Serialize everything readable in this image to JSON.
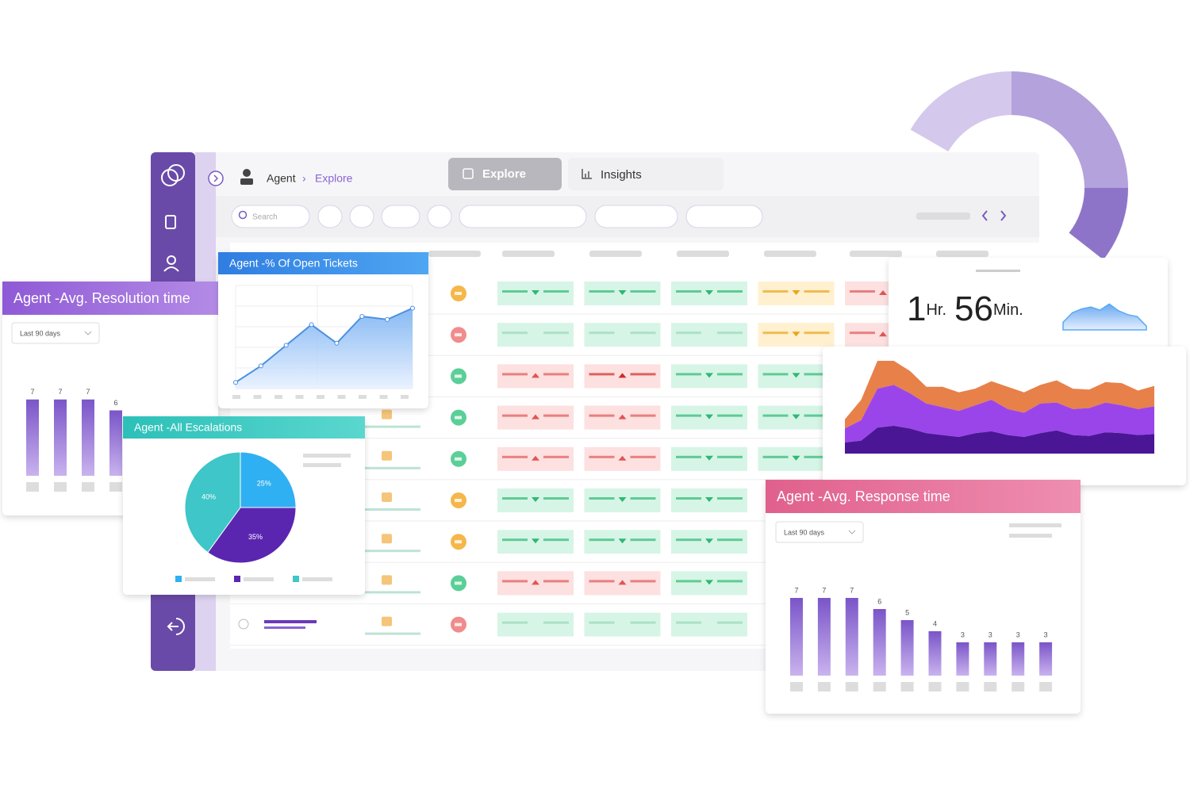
{
  "app": {
    "breadcrumb": [
      "Agent",
      "Explore"
    ],
    "tabs": [
      "Explore",
      "Insights"
    ],
    "search": "Search"
  },
  "chart_data": [
    {
      "type": "line",
      "title": "Agent -% Of Open Tickets",
      "values": [
        6,
        22,
        42,
        62,
        44,
        70,
        67,
        78
      ],
      "ylim": [
        0,
        100
      ],
      "color": "#4a90e2",
      "grid": true
    },
    {
      "type": "bar",
      "title": "Agent -Avg. Resolution time",
      "filter": "Last 90 days",
      "values": [
        7,
        7,
        7,
        6
      ],
      "ylim": [
        0,
        8
      ],
      "color": "#9b73d6"
    },
    {
      "type": "pie",
      "title": "Agent -All Escalations",
      "values": [
        25,
        35,
        40
      ],
      "value_labels": [
        "25%",
        "35%",
        "40%"
      ],
      "colors": [
        "#2fb0f2",
        "#5a26b0",
        "#3ec6c8"
      ]
    },
    {
      "type": "area",
      "headline": {
        "hours": 1,
        "hours_unit": "Hr.",
        "minutes": 56,
        "minutes_unit": "Min."
      },
      "values": [
        20,
        45,
        55,
        60,
        52,
        68,
        50,
        40,
        35,
        10
      ],
      "ylim": [
        0,
        100
      ],
      "color": "#5aa9f0"
    },
    {
      "type": "stacked-area",
      "ylim": [
        0,
        100
      ],
      "series": [
        {
          "color": "#4b1696",
          "values": [
            12,
            14,
            28,
            30,
            27,
            22,
            20,
            18,
            22,
            24,
            20,
            18,
            22,
            25,
            20,
            19,
            23,
            22,
            20,
            21
          ]
        },
        {
          "color": "#9a45ea",
          "values": [
            15,
            22,
            42,
            44,
            38,
            32,
            30,
            28,
            30,
            34,
            28,
            26,
            32,
            30,
            28,
            30,
            32,
            30,
            28,
            30
          ]
        },
        {
          "color": "#e8804a",
          "values": [
            10,
            22,
            30,
            26,
            24,
            18,
            22,
            20,
            18,
            20,
            24,
            22,
            20,
            24,
            22,
            20,
            22,
            24,
            20,
            22
          ]
        }
      ]
    },
    {
      "type": "bar",
      "title": "Agent -Avg. Response time",
      "filter": "Last 90 days",
      "values": [
        7,
        7,
        7,
        6,
        5,
        4,
        3,
        3,
        3,
        3
      ],
      "ylim": [
        0,
        8
      ],
      "color": "#8a63d2"
    }
  ]
}
